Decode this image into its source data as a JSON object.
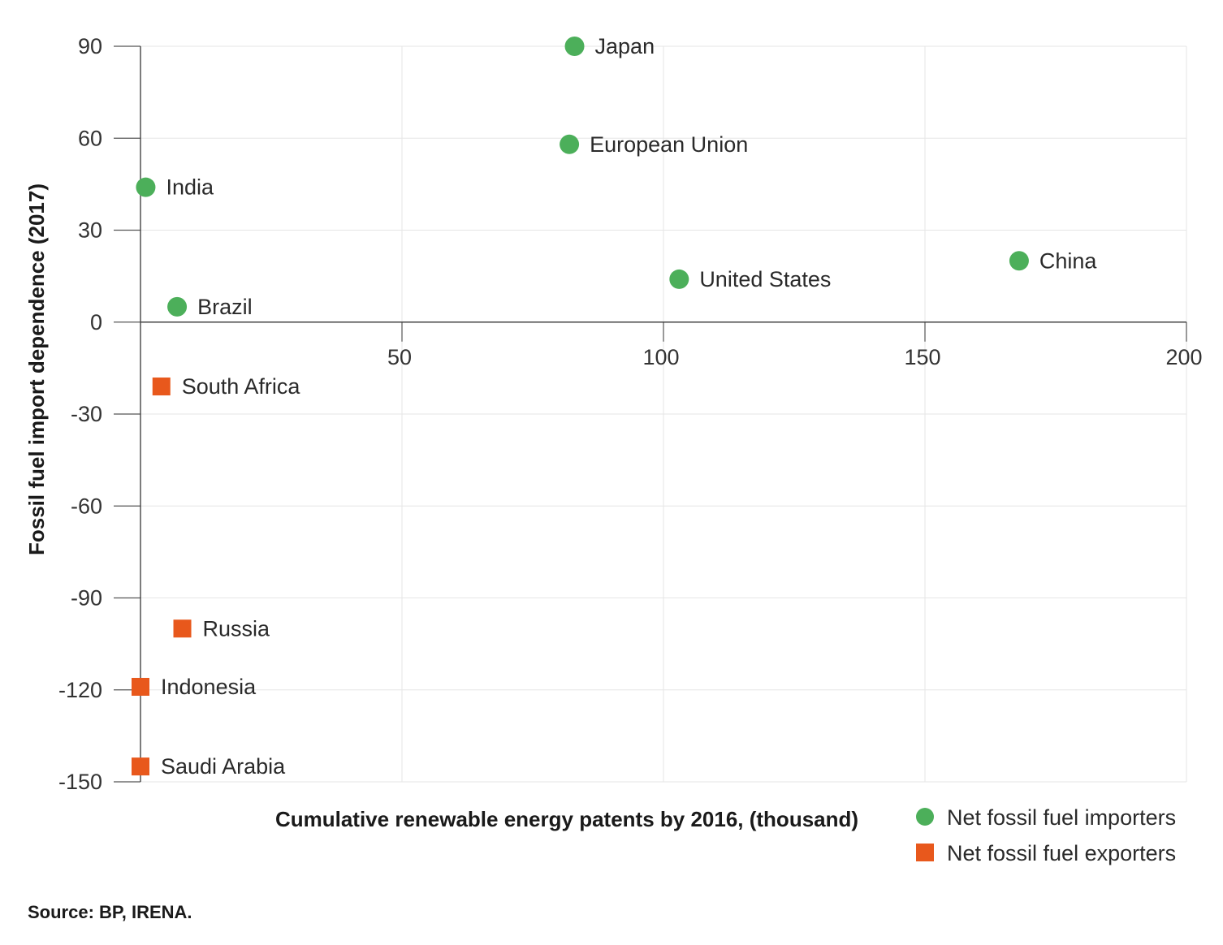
{
  "chart_data": {
    "type": "scatter",
    "xlabel": "Cumulative renewable energy patents by 2016, (thousand)",
    "ylabel": "Fossil fuel import dependence (2017)",
    "xlim": [
      0,
      200
    ],
    "ylim": [
      -150,
      90
    ],
    "x_ticks": [
      50,
      100,
      150,
      200
    ],
    "y_ticks": [
      90,
      60,
      30,
      0,
      -30,
      -60,
      -90,
      -120,
      -150
    ],
    "grid": true,
    "legend_position": "bottom-right",
    "series": [
      {
        "name": "Net fossil fuel importers",
        "marker": "circle",
        "color": "#4caf5a",
        "points": [
          {
            "label": "Japan",
            "x": 83,
            "y": 90
          },
          {
            "label": "European Union",
            "x": 82,
            "y": 58
          },
          {
            "label": "India",
            "x": 1,
            "y": 44
          },
          {
            "label": "China",
            "x": 168,
            "y": 20
          },
          {
            "label": "United States",
            "x": 103,
            "y": 14
          },
          {
            "label": "Brazil",
            "x": 7,
            "y": 5
          }
        ]
      },
      {
        "name": "Net fossil fuel exporters",
        "marker": "square",
        "color": "#e8581c",
        "points": [
          {
            "label": "South Africa",
            "x": 4,
            "y": -21
          },
          {
            "label": "Russia",
            "x": 8,
            "y": -100
          },
          {
            "label": "Indonesia",
            "x": 0,
            "y": -119
          },
          {
            "label": "Saudi Arabia",
            "x": 0,
            "y": -145
          }
        ]
      }
    ]
  },
  "source_note": "Source: BP, IRENA."
}
